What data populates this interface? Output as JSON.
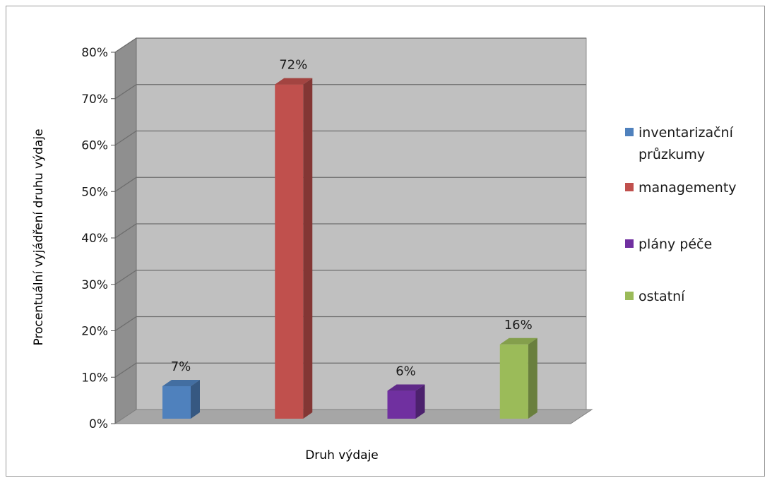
{
  "chart_data": {
    "type": "bar",
    "title": "",
    "xlabel": "Druh výdaje",
    "ylabel": "Procentuální vyjádření druhu výdaje",
    "ylim": [
      0,
      80
    ],
    "yticks": [
      "0%",
      "10%",
      "20%",
      "30%",
      "40%",
      "50%",
      "60%",
      "70%",
      "80%"
    ],
    "grid": true,
    "style": "3d-columns",
    "legend_position": "right",
    "series": [
      {
        "name": "inventarizační průzkumy",
        "legend_lines": [
          "inventarizační",
          "průzkumy"
        ],
        "value": 7,
        "label": "7%",
        "color": "#4f81bd"
      },
      {
        "name": "managementy",
        "legend_lines": [
          "managementy"
        ],
        "value": 72,
        "label": "72%",
        "color": "#c0504d"
      },
      {
        "name": "plány péče",
        "legend_lines": [
          "plány péče"
        ],
        "value": 6,
        "label": "6%",
        "color": "#7030a0"
      },
      {
        "name": "ostatní",
        "legend_lines": [
          "ostatní"
        ],
        "value": 16,
        "label": "16%",
        "color": "#9bbb59"
      }
    ]
  }
}
